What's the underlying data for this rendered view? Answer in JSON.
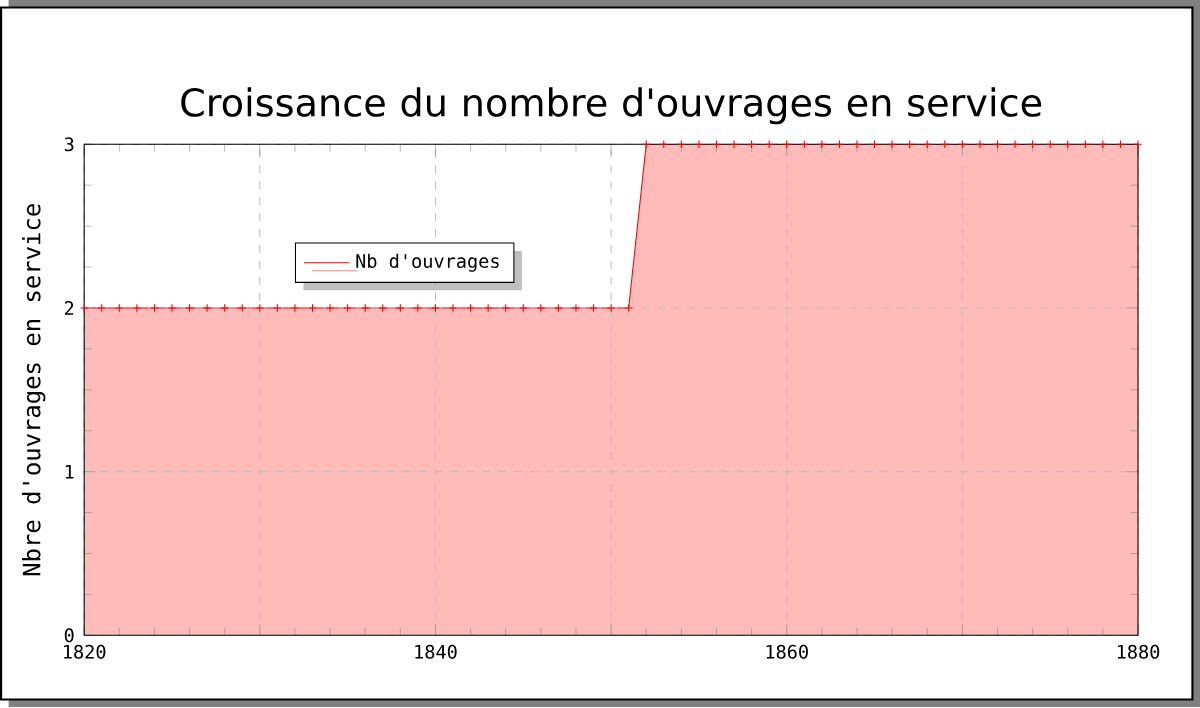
{
  "chart_data": {
    "type": "area",
    "title": "Croissance du nombre d'ouvrages en service",
    "ylabel": "Nbre d'ouvrages en service",
    "x": [
      1820,
      1821,
      1822,
      1823,
      1824,
      1825,
      1826,
      1827,
      1828,
      1829,
      1830,
      1831,
      1832,
      1833,
      1834,
      1835,
      1836,
      1837,
      1838,
      1839,
      1840,
      1841,
      1842,
      1843,
      1844,
      1845,
      1846,
      1847,
      1848,
      1849,
      1850,
      1851,
      1852,
      1853,
      1854,
      1855,
      1856,
      1857,
      1858,
      1859,
      1860,
      1861,
      1862,
      1863,
      1864,
      1865,
      1866,
      1867,
      1868,
      1869,
      1870,
      1871,
      1872,
      1873,
      1874,
      1875,
      1876,
      1877,
      1878,
      1879,
      1880
    ],
    "series": [
      {
        "name": "Nb d'ouvrages",
        "color": "#ff0000",
        "values": [
          2,
          2,
          2,
          2,
          2,
          2,
          2,
          2,
          2,
          2,
          2,
          2,
          2,
          2,
          2,
          2,
          2,
          2,
          2,
          2,
          2,
          2,
          2,
          2,
          2,
          2,
          2,
          2,
          2,
          2,
          2,
          2,
          3,
          3,
          3,
          3,
          3,
          3,
          3,
          3,
          3,
          3,
          3,
          3,
          3,
          3,
          3,
          3,
          3,
          3,
          3,
          3,
          3,
          3,
          3,
          3,
          3,
          3,
          3,
          3,
          3
        ]
      }
    ],
    "xlim": [
      1820,
      1880
    ],
    "ylim": [
      0,
      3
    ],
    "xticks": [
      1820,
      {
        "value": 1830,
        "label": null
      },
      1840,
      {
        "value": 1850,
        "label": null
      },
      1860,
      {
        "value": 1870,
        "label": null
      },
      1880
    ],
    "yticks": [
      0,
      1,
      2,
      3
    ],
    "grid": true,
    "legend": "top left",
    "marker": "cross",
    "line_style": "solid"
  }
}
